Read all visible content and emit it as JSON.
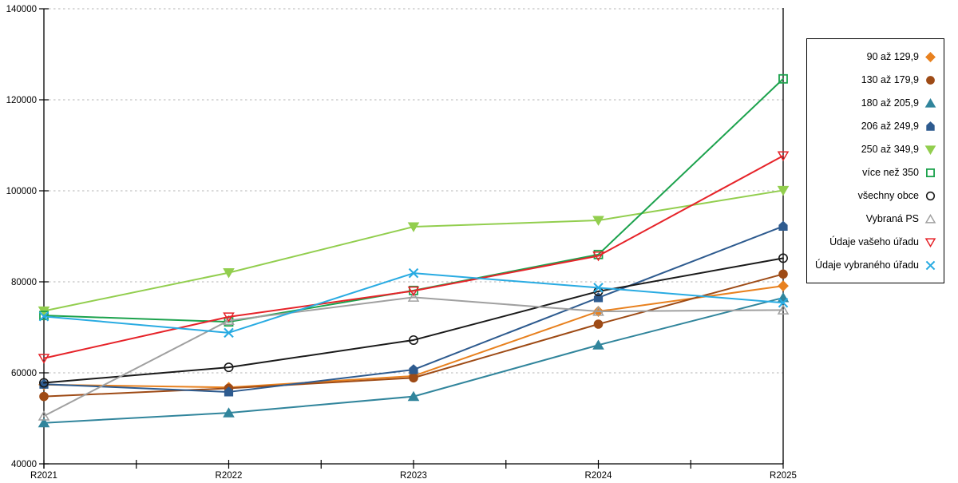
{
  "chart_data": {
    "type": "line",
    "title": "",
    "xlabel": "",
    "ylabel": "",
    "categories": [
      "R2021",
      "R2022",
      "R2023",
      "R2024",
      "R2025"
    ],
    "series": [
      {
        "name": "90 až 129,9",
        "marker": "diamond",
        "marker_style": "filled",
        "color": "#E8811F",
        "values": [
          57400,
          56800,
          59300,
          73500,
          79100
        ]
      },
      {
        "name": "130 až 179,9",
        "marker": "circle",
        "marker_style": "filled",
        "color": "#9E4B16",
        "values": [
          54800,
          56600,
          58900,
          70700,
          81700
        ]
      },
      {
        "name": "180 až 205,9",
        "marker": "triangle-up",
        "marker_style": "filled",
        "color": "#31859C",
        "values": [
          49000,
          51200,
          54800,
          66100,
          76500
        ]
      },
      {
        "name": "206 až 249,9",
        "marker": "pentagon",
        "marker_style": "filled",
        "color": "#2E5B8F",
        "values": [
          57500,
          55800,
          60700,
          76500,
          92200
        ]
      },
      {
        "name": "250 až 349,9",
        "marker": "triangle-down",
        "marker_style": "filled",
        "color": "#92CE4E",
        "values": [
          73600,
          82000,
          92100,
          93500,
          100100
        ]
      },
      {
        "name": "více než 350",
        "marker": "square",
        "marker_style": "open",
        "color": "#1CA24D",
        "values": [
          72600,
          71200,
          78100,
          86000,
          124600
        ]
      },
      {
        "name": "všechny obce",
        "marker": "circle",
        "marker_style": "open",
        "color": "#1A1A1A",
        "values": [
          57800,
          61200,
          67200,
          77900,
          85200
        ]
      },
      {
        "name": "Vybraná PS",
        "marker": "triangle-up",
        "marker_style": "open",
        "color": "#A0A0A0",
        "values": [
          50500,
          71500,
          76600,
          73500,
          73800
        ]
      },
      {
        "name": "Údaje vašeho úřadu",
        "marker": "triangle-down",
        "marker_style": "open",
        "color": "#E62329",
        "values": [
          63200,
          72300,
          78000,
          85700,
          107700
        ]
      },
      {
        "name": "Údaje vybraného úřadu",
        "marker": "x",
        "marker_style": "open",
        "color": "#29ABE2",
        "values": [
          72400,
          68800,
          81900,
          78700,
          75400
        ]
      }
    ],
    "ylim": [
      40000,
      140000
    ],
    "ytick_step": 20000,
    "ytick_labels": [
      "40000",
      "60000",
      "80000",
      "100000",
      "120000",
      "140000"
    ],
    "grid": "horizontal-dashed",
    "grid_color": "#b5b5b5",
    "axis_color": "#000000",
    "legend_position": "right",
    "x_minor_ticks": true
  }
}
